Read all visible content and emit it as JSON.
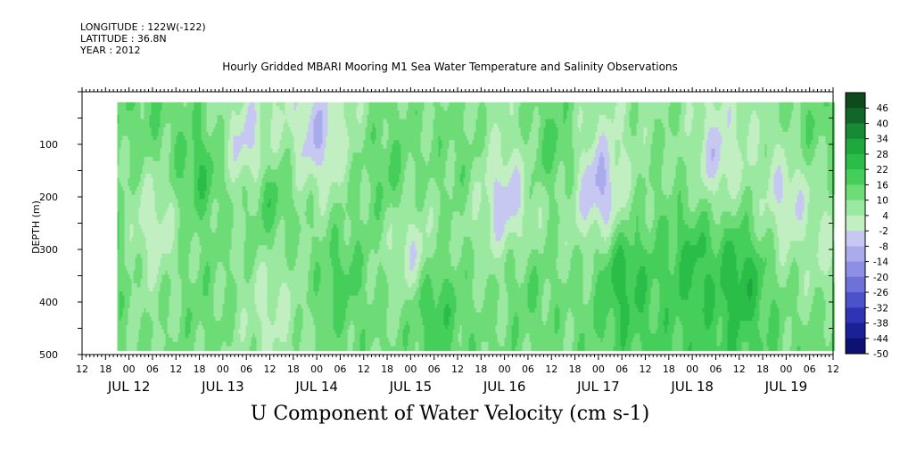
{
  "header": {
    "longitude": "LONGITUDE : 122W(-122)",
    "latitude": "LATITUDE : 36.8N",
    "year": "YEAR : 2012",
    "title": "Hourly Gridded MBARI Mooring M1 Sea Water Temperature and Salinity Observations"
  },
  "chart_data": {
    "type": "heatmap",
    "title": "Hourly Gridded MBARI Mooring M1 Sea Water Temperature and Salinity Observations",
    "xlabel": "U Component of Water Velocity (cm s-1)",
    "ylabel": "DEPTH (m)",
    "ylim": [
      500,
      0
    ],
    "y_inverted": true,
    "yticks": [
      100,
      200,
      300,
      400,
      500
    ],
    "xlim": [
      "2012-07-12 12:00",
      "2012-07-19 14:00"
    ],
    "hour_tick_labels": [
      "12",
      "18",
      "00",
      "06",
      "12",
      "18",
      "00",
      "06",
      "12",
      "18",
      "00",
      "06",
      "12",
      "18",
      "00",
      "06",
      "12",
      "18",
      "00",
      "06",
      "12",
      "18",
      "00",
      "06",
      "12",
      "18",
      "00",
      "06",
      "12",
      "18",
      "00",
      "06",
      "12"
    ],
    "day_labels": [
      "JUL 12",
      "JUL 13",
      "JUL 14",
      "JUL 15",
      "JUL 16",
      "JUL 17",
      "JUL 18",
      "JUL 19"
    ],
    "data_start": "2012-07-12 21:00",
    "depth_min": 20,
    "depth_max": 485,
    "colorbar": {
      "levels": [
        46,
        40,
        34,
        28,
        22,
        16,
        10,
        4,
        -2,
        -8,
        -14,
        -20,
        -26,
        -32,
        -38,
        -44,
        -50
      ],
      "colors": [
        "#0e4a1c",
        "#11662a",
        "#168a35",
        "#1ea83e",
        "#2abd47",
        "#46ce5a",
        "#6ddc77",
        "#9be8a0",
        "#c2efc2",
        "#c6c8f2",
        "#a9abec",
        "#8c8fe3",
        "#6e72d8",
        "#4c52c9",
        "#2d35b4",
        "#1a2096",
        "#0d1270"
      ]
    },
    "pattern": [
      {
        "t": 0,
        "d": 0,
        "u": -6
      },
      {
        "t": 6,
        "d": 0,
        "u": 14
      },
      {
        "t": 6,
        "d": 300,
        "u": 12
      },
      {
        "t": 18,
        "d": 0,
        "u": 10
      },
      {
        "t": 18,
        "d": 250,
        "u": -10
      },
      {
        "t": 30,
        "d": 150,
        "u": 18
      },
      {
        "t": 30,
        "d": 400,
        "u": 8
      },
      {
        "t": 42,
        "d": 100,
        "u": -14
      },
      {
        "t": 48,
        "d": 200,
        "u": 16
      },
      {
        "t": 48,
        "d": 400,
        "u": -6
      },
      {
        "t": 60,
        "d": 80,
        "u": -16
      },
      {
        "t": 66,
        "d": 350,
        "u": 14
      },
      {
        "t": 78,
        "d": 150,
        "u": 12
      },
      {
        "t": 84,
        "d": 300,
        "u": -10
      },
      {
        "t": 90,
        "d": 400,
        "u": 18
      },
      {
        "t": 96,
        "d": 120,
        "u": 8
      },
      {
        "t": 108,
        "d": 200,
        "u": -16
      },
      {
        "t": 114,
        "d": 380,
        "u": 10
      },
      {
        "t": 120,
        "d": 100,
        "u": 14
      },
      {
        "t": 132,
        "d": 180,
        "u": -20
      },
      {
        "t": 138,
        "d": 350,
        "u": 22
      },
      {
        "t": 150,
        "d": 80,
        "u": 4
      },
      {
        "t": 156,
        "d": 320,
        "u": 20
      },
      {
        "t": 162,
        "d": 120,
        "u": -14
      },
      {
        "t": 168,
        "d": 350,
        "u": 24
      },
      {
        "t": 180,
        "d": 200,
        "u": -12
      },
      {
        "t": 186,
        "d": 50,
        "u": 10
      },
      {
        "t": 192,
        "d": 300,
        "u": -8
      },
      {
        "t": 198,
        "d": 380,
        "u": 20
      },
      {
        "t": 204,
        "d": 250,
        "u": 14
      },
      {
        "t": 210,
        "d": 80,
        "u": -10
      },
      {
        "t": 216,
        "d": 400,
        "u": 16
      }
    ]
  }
}
